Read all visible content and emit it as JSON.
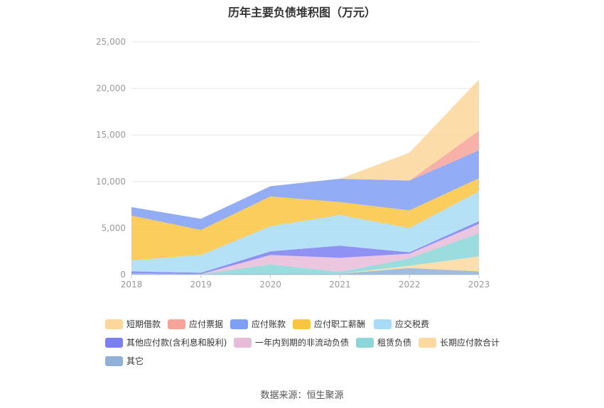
{
  "chart_data": {
    "type": "area",
    "stacked": true,
    "title": "历年主要负债堆积图（万元）",
    "source": "数据来源：恒生聚源",
    "x": [
      "2018",
      "2019",
      "2020",
      "2021",
      "2022",
      "2023"
    ],
    "ylim": [
      0,
      25000
    ],
    "yticks": [
      "0",
      "5,000",
      "10,000",
      "15,000",
      "20,000",
      "25,000"
    ],
    "grid": true,
    "legend_position": "bottom",
    "series": [
      {
        "name": "其它",
        "color": "#8fb0d9",
        "values": [
          150,
          50,
          100,
          100,
          700,
          350
        ]
      },
      {
        "name": "长期应付款合计",
        "color": "#fdd9a0",
        "values": [
          0,
          0,
          0,
          0,
          250,
          1600
        ]
      },
      {
        "name": "租赁负债",
        "color": "#8ad6d8",
        "values": [
          0,
          0,
          1000,
          200,
          800,
          2500
        ]
      },
      {
        "name": "一年内到期的非流动负债",
        "color": "#e8bcd8",
        "values": [
          0,
          0,
          1000,
          1500,
          500,
          1000
        ]
      },
      {
        "name": "其他应付款(含利息和股利)",
        "color": "#7b7ff0",
        "values": [
          200,
          150,
          400,
          1300,
          150,
          300
        ]
      },
      {
        "name": "应交税费",
        "color": "#a8dcf6",
        "values": [
          1200,
          1900,
          2700,
          3300,
          2600,
          3200
        ]
      },
      {
        "name": "应付职工薪酬",
        "color": "#f9c440",
        "values": [
          4800,
          2700,
          3200,
          1400,
          1900,
          1400
        ]
      },
      {
        "name": "应付账款",
        "color": "#7f9ff5",
        "values": [
          900,
          1200,
          1100,
          2500,
          3200,
          3000
        ]
      },
      {
        "name": "应付票据",
        "color": "#f6a39a",
        "values": [
          0,
          0,
          0,
          0,
          0,
          2100
        ]
      },
      {
        "name": "短期借款",
        "color": "#fcd79b",
        "values": [
          0,
          0,
          0,
          0,
          3000,
          5500
        ]
      }
    ]
  },
  "legend_order": [
    "短期借款",
    "应付票据",
    "应付账款",
    "应付职工薪酬",
    "应交税费",
    "其他应付款(含利息和股利)",
    "一年内到期的非流动负债",
    "租赁负债",
    "长期应付款合计",
    "其它"
  ]
}
